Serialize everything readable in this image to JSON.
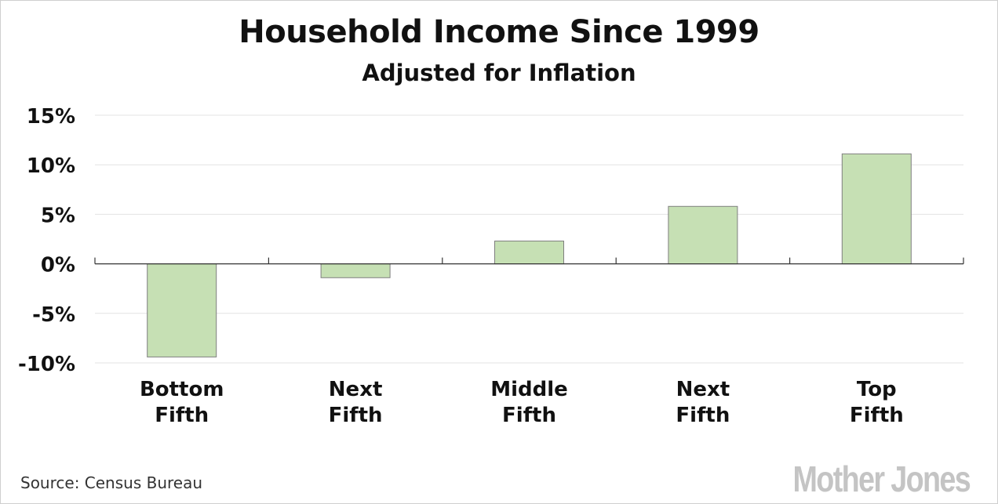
{
  "chart_data": {
    "type": "bar",
    "title": "Household Income Since 1999",
    "subtitle": "Adjusted for Inflation",
    "categories": [
      [
        "Bottom",
        "Fifth"
      ],
      [
        "Next",
        "Fifth"
      ],
      [
        "Middle",
        "Fifth"
      ],
      [
        "Next",
        "Fifth"
      ],
      [
        "Top",
        "Fifth"
      ]
    ],
    "values": [
      -9.4,
      -1.4,
      2.3,
      5.8,
      11.1
    ],
    "ylim": [
      -10,
      15
    ],
    "yticks": [
      15,
      10,
      5,
      0,
      -5,
      -10
    ],
    "ytick_labels": [
      "15%",
      "10%",
      "5%",
      "0%",
      "-5%",
      "-10%"
    ],
    "xlabel": "",
    "ylabel": "",
    "grid": true,
    "legend": "none",
    "bar_color": "#c6e0b4",
    "bar_border_color": "#7f7f7f"
  },
  "footer": {
    "source": "Source:  Census Bureau",
    "brand": "Mother Jones"
  }
}
